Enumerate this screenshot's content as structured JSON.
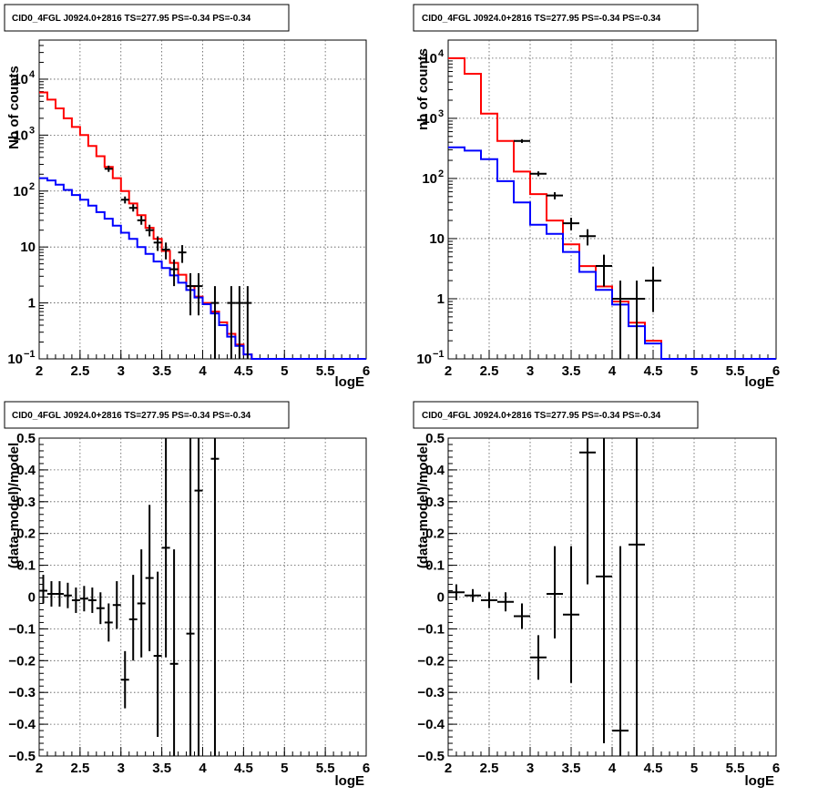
{
  "colors": {
    "model_total": "#ff0000",
    "model_background": "#0000ff",
    "data": "#000000",
    "grid": "#555555"
  },
  "chart_data": [
    {
      "id": "counts-left",
      "type": "line",
      "title": "CID0_4FGL J0924.0+2816 TS=277.95 PS=-0.34 PS=-0.34",
      "xlabel": "logE",
      "ylabel": "Nb of counts",
      "xlim": [
        2,
        6
      ],
      "ylim": [
        0.1,
        50000
      ],
      "ylog": true,
      "grid": true,
      "x_ticks": [
        "2",
        "2.5",
        "3",
        "3.5",
        "4",
        "4.5",
        "5",
        "5.5",
        "6"
      ],
      "y_ticks": [
        {
          "value": 0.1,
          "label": "10",
          "exp": "−1"
        },
        {
          "value": 1,
          "label": "1",
          "exp": ""
        },
        {
          "value": 10,
          "label": "10",
          "exp": ""
        },
        {
          "value": 100,
          "label": "10",
          "exp": "2"
        },
        {
          "value": 1000,
          "label": "10",
          "exp": "3"
        },
        {
          "value": 10000,
          "label": "10",
          "exp": "4"
        }
      ],
      "bin_edges": [
        2.0,
        2.1,
        2.2,
        2.3,
        2.4,
        2.5,
        2.6,
        2.7,
        2.8,
        2.9,
        3.0,
        3.1,
        3.2,
        3.3,
        3.4,
        3.5,
        3.6,
        3.7,
        3.8,
        3.9,
        4.0,
        4.1,
        4.2,
        4.3,
        4.4,
        4.5,
        4.6,
        4.7,
        4.8,
        4.9,
        5.0,
        5.1,
        5.2,
        5.3,
        5.4,
        5.5,
        5.6,
        5.7,
        5.8,
        5.9,
        6.0
      ],
      "series": [
        {
          "role": "model_total",
          "values": [
            5800,
            4300,
            3000,
            2000,
            1400,
            1000,
            640,
            420,
            270,
            170,
            100,
            60,
            37,
            22,
            14,
            8.5,
            5.2,
            3.2,
            2.0,
            1.3,
            1.0,
            0.7,
            0.45,
            0.28,
            0.18,
            0.12,
            0.1,
            0.1,
            0.1,
            0.1,
            0.1,
            0.1,
            0.1,
            0.1,
            0.1,
            0.1,
            0.1,
            0.1,
            0.1,
            0.1
          ]
        },
        {
          "role": "model_background",
          "values": [
            170,
            155,
            130,
            105,
            85,
            70,
            55,
            42,
            32,
            24,
            18,
            14,
            10,
            7.5,
            5.5,
            4.2,
            3.1,
            2.3,
            1.7,
            1.25,
            0.95,
            0.65,
            0.4,
            0.25,
            0.17,
            0.12,
            0.1,
            0.1,
            0.1,
            0.1,
            0.1,
            0.1,
            0.1,
            0.1,
            0.1,
            0.1,
            0.1,
            0.1,
            0.1,
            0.1
          ]
        }
      ],
      "points": [
        {
          "x": 2.85,
          "y": 250,
          "xerr": 0.05,
          "ylo": 220,
          "yhi": 285
        },
        {
          "x": 3.05,
          "y": 70,
          "xerr": 0.05,
          "ylo": 60,
          "yhi": 80
        },
        {
          "x": 3.15,
          "y": 50,
          "xerr": 0.05,
          "ylo": 43,
          "yhi": 58
        },
        {
          "x": 3.25,
          "y": 30,
          "xerr": 0.05,
          "ylo": 25,
          "yhi": 36
        },
        {
          "x": 3.35,
          "y": 20,
          "xerr": 0.05,
          "ylo": 15.5,
          "yhi": 25
        },
        {
          "x": 3.45,
          "y": 12,
          "xerr": 0.05,
          "ylo": 8.5,
          "yhi": 15.5
        },
        {
          "x": 3.55,
          "y": 9,
          "xerr": 0.05,
          "ylo": 6,
          "yhi": 12
        },
        {
          "x": 3.65,
          "y": 4,
          "xerr": 0.05,
          "ylo": 2.0,
          "yhi": 6
        },
        {
          "x": 3.75,
          "y": 8,
          "xerr": 0.05,
          "ylo": 5.2,
          "yhi": 10.8
        },
        {
          "x": 3.85,
          "y": 2,
          "xerr": 0.05,
          "ylo": 0.6,
          "yhi": 3.4
        },
        {
          "x": 3.95,
          "y": 2,
          "xerr": 0.05,
          "ylo": 0.6,
          "yhi": 3.4
        },
        {
          "x": 4.15,
          "y": 1,
          "xerr": 0.05,
          "ylo": 0.1,
          "yhi": 2.0
        },
        {
          "x": 4.35,
          "y": 1,
          "xerr": 0.05,
          "ylo": 0.1,
          "yhi": 2.0
        },
        {
          "x": 4.45,
          "y": 1,
          "xerr": 0.05,
          "ylo": 0.1,
          "yhi": 2.0
        },
        {
          "x": 4.55,
          "y": 1,
          "xerr": 0.05,
          "ylo": 0.1,
          "yhi": 2.0
        }
      ]
    },
    {
      "id": "counts-right",
      "type": "line",
      "title": "CID0_4FGL J0924.0+2816 TS=277.95 PS=-0.34 PS=-0.34",
      "xlabel": "logE",
      "ylabel": "nb of counts",
      "xlim": [
        2,
        6
      ],
      "ylim": [
        0.1,
        20000
      ],
      "ylog": true,
      "grid": true,
      "x_ticks": [
        "2",
        "2.5",
        "3",
        "3.5",
        "4",
        "4.5",
        "5",
        "5.5",
        "6"
      ],
      "y_ticks": [
        {
          "value": 0.1,
          "label": "10",
          "exp": "−1"
        },
        {
          "value": 1,
          "label": "1",
          "exp": ""
        },
        {
          "value": 10,
          "label": "10",
          "exp": ""
        },
        {
          "value": 100,
          "label": "10",
          "exp": "2"
        },
        {
          "value": 1000,
          "label": "10",
          "exp": "3"
        },
        {
          "value": 10000,
          "label": "10",
          "exp": "4"
        }
      ],
      "bin_edges": [
        2.0,
        2.2,
        2.4,
        2.6,
        2.8,
        3.0,
        3.2,
        3.4,
        3.6,
        3.8,
        4.0,
        4.2,
        4.4,
        4.6,
        4.8,
        5.0,
        5.2,
        5.4,
        5.6,
        5.8,
        6.0
      ],
      "series": [
        {
          "role": "model_total",
          "values": [
            10000,
            5500,
            1200,
            420,
            130,
            55,
            20,
            8,
            3.5,
            1.6,
            0.9,
            0.4,
            0.2,
            0.1,
            0.1,
            0.1,
            0.1,
            0.1,
            0.1,
            0.1
          ]
        },
        {
          "role": "model_background",
          "values": [
            330,
            290,
            210,
            90,
            40,
            17,
            12,
            6,
            2.8,
            1.4,
            0.8,
            0.35,
            0.18,
            0.1,
            0.1,
            0.1,
            0.1,
            0.1,
            0.1,
            0.1
          ]
        }
      ],
      "points": [
        {
          "x": 2.9,
          "y": 420,
          "xerr": 0.1,
          "ylo": 390,
          "yhi": 450
        },
        {
          "x": 3.1,
          "y": 120,
          "xerr": 0.1,
          "ylo": 109,
          "yhi": 131
        },
        {
          "x": 3.3,
          "y": 52,
          "xerr": 0.1,
          "ylo": 45,
          "yhi": 59
        },
        {
          "x": 3.5,
          "y": 18,
          "xerr": 0.1,
          "ylo": 13.8,
          "yhi": 22.2
        },
        {
          "x": 3.7,
          "y": 11,
          "xerr": 0.1,
          "ylo": 7.7,
          "yhi": 14.3
        },
        {
          "x": 3.9,
          "y": 3.5,
          "xerr": 0.1,
          "ylo": 1.6,
          "yhi": 5.4
        },
        {
          "x": 4.1,
          "y": 1,
          "xerr": 0.1,
          "ylo": 0.1,
          "yhi": 2.0
        },
        {
          "x": 4.3,
          "y": 1,
          "xerr": 0.1,
          "ylo": 0.1,
          "yhi": 2.0
        },
        {
          "x": 4.5,
          "y": 2,
          "xerr": 0.1,
          "ylo": 0.6,
          "yhi": 3.4
        }
      ]
    },
    {
      "id": "residual-left",
      "type": "scatter",
      "title": "CID0_4FGL J0924.0+2816 TS=277.95 PS=-0.34 PS=-0.34",
      "xlabel": "logE",
      "ylabel": "(data-model)/model",
      "xlim": [
        2,
        6
      ],
      "ylim": [
        -0.5,
        0.5
      ],
      "ylog": false,
      "grid": true,
      "x_ticks": [
        "2",
        "2.5",
        "3",
        "3.5",
        "4",
        "4.5",
        "5",
        "5.5",
        "6"
      ],
      "y_ticks": [
        {
          "value": -0.5,
          "label": "−0.5",
          "exp": ""
        },
        {
          "value": -0.4,
          "label": "−0.4",
          "exp": ""
        },
        {
          "value": -0.3,
          "label": "−0.3",
          "exp": ""
        },
        {
          "value": -0.2,
          "label": "−0.2",
          "exp": ""
        },
        {
          "value": -0.1,
          "label": "−0.1",
          "exp": ""
        },
        {
          "value": 0,
          "label": "0",
          "exp": ""
        },
        {
          "value": 0.1,
          "label": "0.1",
          "exp": ""
        },
        {
          "value": 0.2,
          "label": "0.2",
          "exp": ""
        },
        {
          "value": 0.3,
          "label": "0.3",
          "exp": ""
        },
        {
          "value": 0.4,
          "label": "0.4",
          "exp": ""
        },
        {
          "value": 0.5,
          "label": "0.5",
          "exp": ""
        }
      ],
      "points": [
        {
          "x": 2.05,
          "y": 0.02,
          "xerr": 0.05,
          "ylo": -0.02,
          "yhi": 0.07
        },
        {
          "x": 2.15,
          "y": 0.01,
          "xerr": 0.05,
          "ylo": -0.03,
          "yhi": 0.05
        },
        {
          "x": 2.25,
          "y": 0.01,
          "xerr": 0.05,
          "ylo": -0.03,
          "yhi": 0.05
        },
        {
          "x": 2.35,
          "y": 0.005,
          "xerr": 0.05,
          "ylo": -0.035,
          "yhi": 0.045
        },
        {
          "x": 2.45,
          "y": -0.01,
          "xerr": 0.05,
          "ylo": -0.05,
          "yhi": 0.03
        },
        {
          "x": 2.55,
          "y": -0.005,
          "xerr": 0.05,
          "ylo": -0.045,
          "yhi": 0.035
        },
        {
          "x": 2.65,
          "y": -0.01,
          "xerr": 0.05,
          "ylo": -0.05,
          "yhi": 0.03
        },
        {
          "x": 2.75,
          "y": -0.035,
          "xerr": 0.05,
          "ylo": -0.085,
          "yhi": 0.015
        },
        {
          "x": 2.85,
          "y": -0.08,
          "xerr": 0.05,
          "ylo": -0.14,
          "yhi": -0.02
        },
        {
          "x": 2.95,
          "y": -0.025,
          "xerr": 0.05,
          "ylo": -0.1,
          "yhi": 0.05
        },
        {
          "x": 3.05,
          "y": -0.26,
          "xerr": 0.05,
          "ylo": -0.35,
          "yhi": -0.17
        },
        {
          "x": 3.15,
          "y": -0.07,
          "xerr": 0.05,
          "ylo": -0.2,
          "yhi": 0.07
        },
        {
          "x": 3.25,
          "y": -0.02,
          "xerr": 0.05,
          "ylo": -0.19,
          "yhi": 0.15
        },
        {
          "x": 3.35,
          "y": 0.06,
          "xerr": 0.05,
          "ylo": -0.17,
          "yhi": 0.29
        },
        {
          "x": 3.45,
          "y": -0.185,
          "xerr": 0.05,
          "ylo": -0.44,
          "yhi": 0.08
        },
        {
          "x": 3.55,
          "y": 0.155,
          "xerr": 0.05,
          "ylo": -0.19,
          "yhi": 0.5
        },
        {
          "x": 3.65,
          "y": -0.21,
          "xerr": 0.05,
          "ylo": -0.5,
          "yhi": 0.15
        },
        {
          "x": 3.85,
          "y": -0.115,
          "xerr": 0.05,
          "ylo": -0.5,
          "yhi": 0.5
        },
        {
          "x": 3.95,
          "y": 0.335,
          "xerr": 0.05,
          "ylo": -0.5,
          "yhi": 0.5
        },
        {
          "x": 4.15,
          "y": 0.435,
          "xerr": 0.05,
          "ylo": -0.5,
          "yhi": 0.5
        }
      ]
    },
    {
      "id": "residual-right",
      "type": "scatter",
      "title": "CID0_4FGL J0924.0+2816 TS=277.95 PS=-0.34 PS=-0.34",
      "xlabel": "logE",
      "ylabel": "(data-model)/model",
      "xlim": [
        2,
        6
      ],
      "ylim": [
        -0.5,
        0.5
      ],
      "ylog": false,
      "grid": true,
      "x_ticks": [
        "2",
        "2.5",
        "3",
        "3.5",
        "4",
        "4.5",
        "5",
        "5.5",
        "6"
      ],
      "y_ticks": [
        {
          "value": -0.5,
          "label": "−0.5",
          "exp": ""
        },
        {
          "value": -0.4,
          "label": "−0.4",
          "exp": ""
        },
        {
          "value": -0.3,
          "label": "−0.3",
          "exp": ""
        },
        {
          "value": -0.2,
          "label": "−0.2",
          "exp": ""
        },
        {
          "value": -0.1,
          "label": "−0.1",
          "exp": ""
        },
        {
          "value": 0,
          "label": "0",
          "exp": ""
        },
        {
          "value": 0.1,
          "label": "0.1",
          "exp": ""
        },
        {
          "value": 0.2,
          "label": "0.2",
          "exp": ""
        },
        {
          "value": 0.3,
          "label": "0.3",
          "exp": ""
        },
        {
          "value": 0.4,
          "label": "0.4",
          "exp": ""
        },
        {
          "value": 0.5,
          "label": "0.5",
          "exp": ""
        }
      ],
      "points": [
        {
          "x": 2.1,
          "y": 0.015,
          "xerr": 0.1,
          "ylo": -0.01,
          "yhi": 0.04
        },
        {
          "x": 2.3,
          "y": 0.005,
          "xerr": 0.1,
          "ylo": -0.015,
          "yhi": 0.025
        },
        {
          "x": 2.5,
          "y": -0.01,
          "xerr": 0.1,
          "ylo": -0.035,
          "yhi": 0.015
        },
        {
          "x": 2.7,
          "y": -0.015,
          "xerr": 0.1,
          "ylo": -0.045,
          "yhi": 0.015
        },
        {
          "x": 2.9,
          "y": -0.06,
          "xerr": 0.1,
          "ylo": -0.1,
          "yhi": -0.02
        },
        {
          "x": 3.1,
          "y": -0.19,
          "xerr": 0.1,
          "ylo": -0.26,
          "yhi": -0.12
        },
        {
          "x": 3.3,
          "y": 0.01,
          "xerr": 0.1,
          "ylo": -0.13,
          "yhi": 0.16
        },
        {
          "x": 3.5,
          "y": -0.055,
          "xerr": 0.1,
          "ylo": -0.27,
          "yhi": 0.16
        },
        {
          "x": 3.7,
          "y": 0.455,
          "xerr": 0.1,
          "ylo": 0.04,
          "yhi": 0.5
        },
        {
          "x": 3.9,
          "y": 0.065,
          "xerr": 0.1,
          "ylo": -0.46,
          "yhi": 0.5
        },
        {
          "x": 4.1,
          "y": -0.42,
          "xerr": 0.1,
          "ylo": -0.5,
          "yhi": 0.16
        },
        {
          "x": 4.3,
          "y": 0.165,
          "xerr": 0.1,
          "ylo": -0.5,
          "yhi": 0.5
        }
      ]
    }
  ]
}
